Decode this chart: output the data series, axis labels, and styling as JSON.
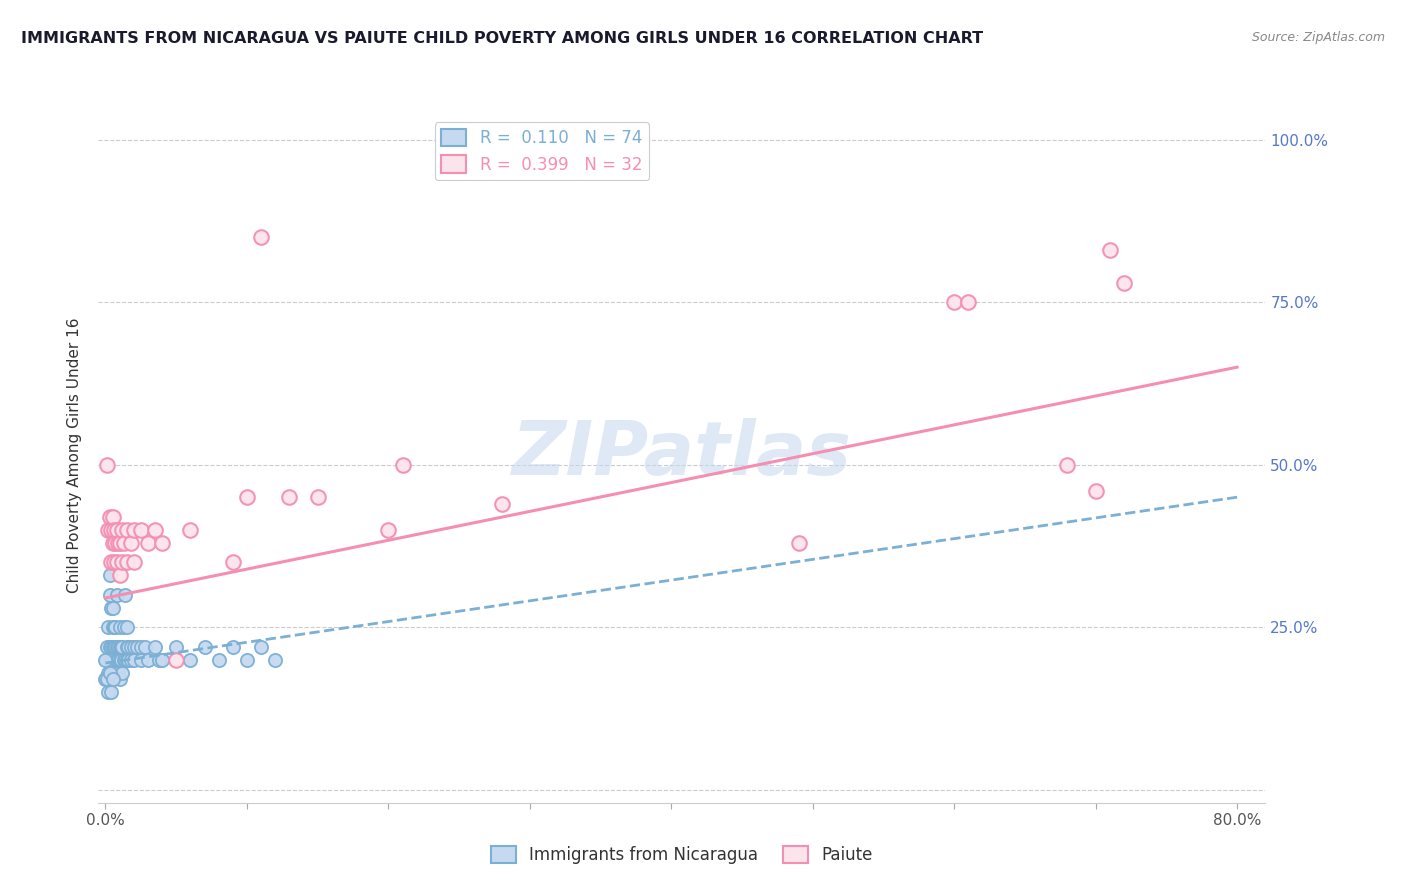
{
  "title": "IMMIGRANTS FROM NICARAGUA VS PAIUTE CHILD POVERTY AMONG GIRLS UNDER 16 CORRELATION CHART",
  "source": "Source: ZipAtlas.com",
  "ylabel": "Child Poverty Among Girls Under 16",
  "xlim": [
    -0.005,
    0.82
  ],
  "ylim": [
    -0.02,
    1.05
  ],
  "xtick_positions": [
    0.0,
    0.1,
    0.2,
    0.3,
    0.4,
    0.5,
    0.6,
    0.7,
    0.8
  ],
  "xtick_labels": [
    "0.0%",
    "",
    "",
    "",
    "",
    "",
    "",
    "",
    "80.0%"
  ],
  "ytick_positions": [
    0.0,
    0.25,
    0.5,
    0.75,
    1.0
  ],
  "ytick_labels": [
    "",
    "25.0%",
    "50.0%",
    "75.0%",
    "100.0%"
  ],
  "watermark": "ZIPatlas",
  "blue_color": "#7bafd4",
  "pink_color": "#f48fb1",
  "blue_fill": "#c5d9f0",
  "pink_fill": "#fce4ec",
  "blue_scatter": [
    [
      0.001,
      0.2
    ],
    [
      0.001,
      0.22
    ],
    [
      0.002,
      0.18
    ],
    [
      0.002,
      0.25
    ],
    [
      0.003,
      0.2
    ],
    [
      0.003,
      0.22
    ],
    [
      0.003,
      0.3
    ],
    [
      0.003,
      0.33
    ],
    [
      0.004,
      0.18
    ],
    [
      0.004,
      0.2
    ],
    [
      0.004,
      0.22
    ],
    [
      0.004,
      0.28
    ],
    [
      0.005,
      0.17
    ],
    [
      0.005,
      0.2
    ],
    [
      0.005,
      0.22
    ],
    [
      0.005,
      0.25
    ],
    [
      0.005,
      0.28
    ],
    [
      0.006,
      0.18
    ],
    [
      0.006,
      0.2
    ],
    [
      0.006,
      0.22
    ],
    [
      0.006,
      0.25
    ],
    [
      0.007,
      0.18
    ],
    [
      0.007,
      0.22
    ],
    [
      0.007,
      0.25
    ],
    [
      0.008,
      0.2
    ],
    [
      0.008,
      0.22
    ],
    [
      0.008,
      0.3
    ],
    [
      0.009,
      0.18
    ],
    [
      0.009,
      0.2
    ],
    [
      0.009,
      0.22
    ],
    [
      0.01,
      0.17
    ],
    [
      0.01,
      0.2
    ],
    [
      0.01,
      0.22
    ],
    [
      0.01,
      0.25
    ],
    [
      0.011,
      0.2
    ],
    [
      0.011,
      0.22
    ],
    [
      0.012,
      0.18
    ],
    [
      0.012,
      0.22
    ],
    [
      0.013,
      0.2
    ],
    [
      0.013,
      0.25
    ],
    [
      0.014,
      0.2
    ],
    [
      0.014,
      0.3
    ],
    [
      0.015,
      0.2
    ],
    [
      0.015,
      0.22
    ],
    [
      0.015,
      0.25
    ],
    [
      0.016,
      0.2
    ],
    [
      0.016,
      0.22
    ],
    [
      0.018,
      0.2
    ],
    [
      0.018,
      0.22
    ],
    [
      0.02,
      0.2
    ],
    [
      0.02,
      0.22
    ],
    [
      0.022,
      0.22
    ],
    [
      0.025,
      0.2
    ],
    [
      0.025,
      0.22
    ],
    [
      0.028,
      0.22
    ],
    [
      0.03,
      0.2
    ],
    [
      0.035,
      0.22
    ],
    [
      0.038,
      0.2
    ],
    [
      0.04,
      0.2
    ],
    [
      0.05,
      0.22
    ],
    [
      0.06,
      0.2
    ],
    [
      0.07,
      0.22
    ],
    [
      0.08,
      0.2
    ],
    [
      0.09,
      0.22
    ],
    [
      0.1,
      0.2
    ],
    [
      0.11,
      0.22
    ],
    [
      0.12,
      0.2
    ],
    [
      0.0,
      0.17
    ],
    [
      0.0,
      0.2
    ],
    [
      0.001,
      0.17
    ],
    [
      0.002,
      0.15
    ],
    [
      0.003,
      0.18
    ],
    [
      0.004,
      0.15
    ],
    [
      0.005,
      0.17
    ]
  ],
  "pink_scatter": [
    [
      0.001,
      0.5
    ],
    [
      0.002,
      0.4
    ],
    [
      0.003,
      0.42
    ],
    [
      0.004,
      0.35
    ],
    [
      0.004,
      0.4
    ],
    [
      0.005,
      0.38
    ],
    [
      0.005,
      0.42
    ],
    [
      0.006,
      0.35
    ],
    [
      0.006,
      0.4
    ],
    [
      0.007,
      0.38
    ],
    [
      0.008,
      0.35
    ],
    [
      0.008,
      0.4
    ],
    [
      0.009,
      0.38
    ],
    [
      0.01,
      0.33
    ],
    [
      0.01,
      0.38
    ],
    [
      0.012,
      0.35
    ],
    [
      0.012,
      0.4
    ],
    [
      0.013,
      0.38
    ],
    [
      0.015,
      0.35
    ],
    [
      0.015,
      0.4
    ],
    [
      0.018,
      0.38
    ],
    [
      0.02,
      0.35
    ],
    [
      0.02,
      0.4
    ],
    [
      0.025,
      0.4
    ],
    [
      0.03,
      0.38
    ],
    [
      0.035,
      0.4
    ],
    [
      0.04,
      0.38
    ],
    [
      0.05,
      0.2
    ],
    [
      0.06,
      0.4
    ],
    [
      0.09,
      0.35
    ],
    [
      0.1,
      0.45
    ],
    [
      0.11,
      0.85
    ],
    [
      0.13,
      0.45
    ],
    [
      0.15,
      0.45
    ],
    [
      0.2,
      0.4
    ],
    [
      0.21,
      0.5
    ],
    [
      0.28,
      0.44
    ],
    [
      0.49,
      0.38
    ],
    [
      0.6,
      0.75
    ],
    [
      0.61,
      0.75
    ],
    [
      0.68,
      0.5
    ],
    [
      0.7,
      0.46
    ],
    [
      0.71,
      0.83
    ],
    [
      0.72,
      0.78
    ]
  ],
  "blue_line": {
    "x0": 0.0,
    "x1": 0.8,
    "y0": 0.195,
    "y1": 0.45
  },
  "pink_line": {
    "x0": 0.0,
    "x1": 0.8,
    "y0": 0.295,
    "y1": 0.65
  }
}
